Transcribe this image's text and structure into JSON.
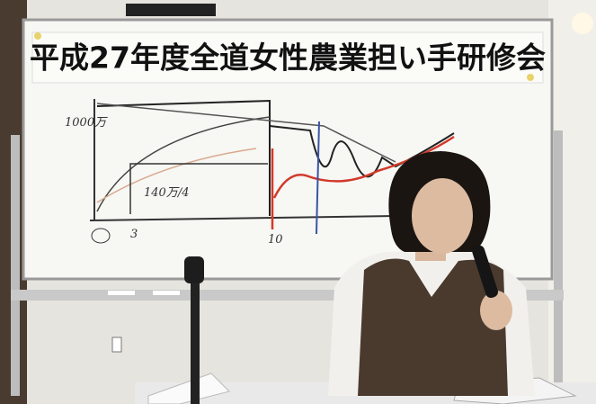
{
  "banner": {
    "title": "平成27年度全道女性農業担い手研修会"
  },
  "whiteboard": {
    "labels": [
      "1000万",
      "140万/4",
      "3",
      "10"
    ]
  }
}
